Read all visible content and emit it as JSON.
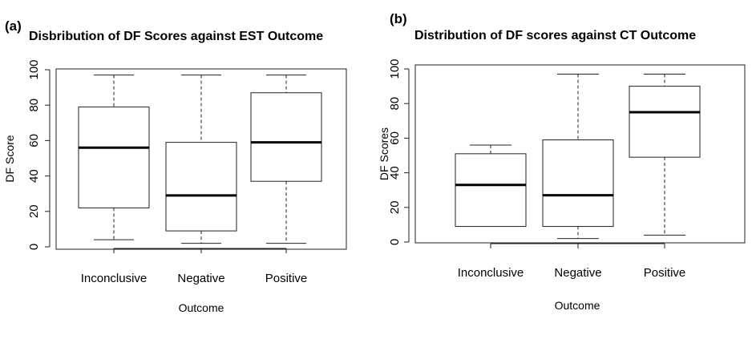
{
  "chart_data": [
    {
      "panel_label": "(a)",
      "type": "boxplot",
      "title": "Disbribution of DF Scores against EST Outcome",
      "xlabel": "Outcome",
      "ylabel": "DF Score",
      "ylim": [
        0,
        100
      ],
      "yticks": [
        0,
        20,
        40,
        60,
        80,
        100
      ],
      "categories": [
        "Inconclusive",
        "Negative",
        "Positive"
      ],
      "boxes": [
        {
          "min": 4,
          "q1": 22,
          "median": 56,
          "q3": 79,
          "max": 97
        },
        {
          "min": 2,
          "q1": 9,
          "median": 29,
          "q3": 59,
          "max": 97
        },
        {
          "min": 2,
          "q1": 37,
          "median": 59,
          "q3": 87,
          "max": 97
        }
      ],
      "grid": false,
      "legend": "none"
    },
    {
      "panel_label": "(b)",
      "type": "boxplot",
      "title": "Distribution of DF scores against CT Outcome",
      "xlabel": "Outcome",
      "ylabel": "DF Scores",
      "ylim": [
        0,
        100
      ],
      "yticks": [
        0,
        20,
        40,
        60,
        80,
        100
      ],
      "categories": [
        "Inconclusive",
        "Negative",
        "Positive"
      ],
      "boxes": [
        {
          "min": 9,
          "q1": 9,
          "median": 33,
          "q3": 51,
          "max": 56
        },
        {
          "min": 2,
          "q1": 9,
          "median": 27,
          "q3": 59,
          "max": 97
        },
        {
          "min": 4,
          "q1": 49,
          "median": 75,
          "q3": 90,
          "max": 97
        }
      ],
      "grid": false,
      "legend": "none"
    }
  ]
}
